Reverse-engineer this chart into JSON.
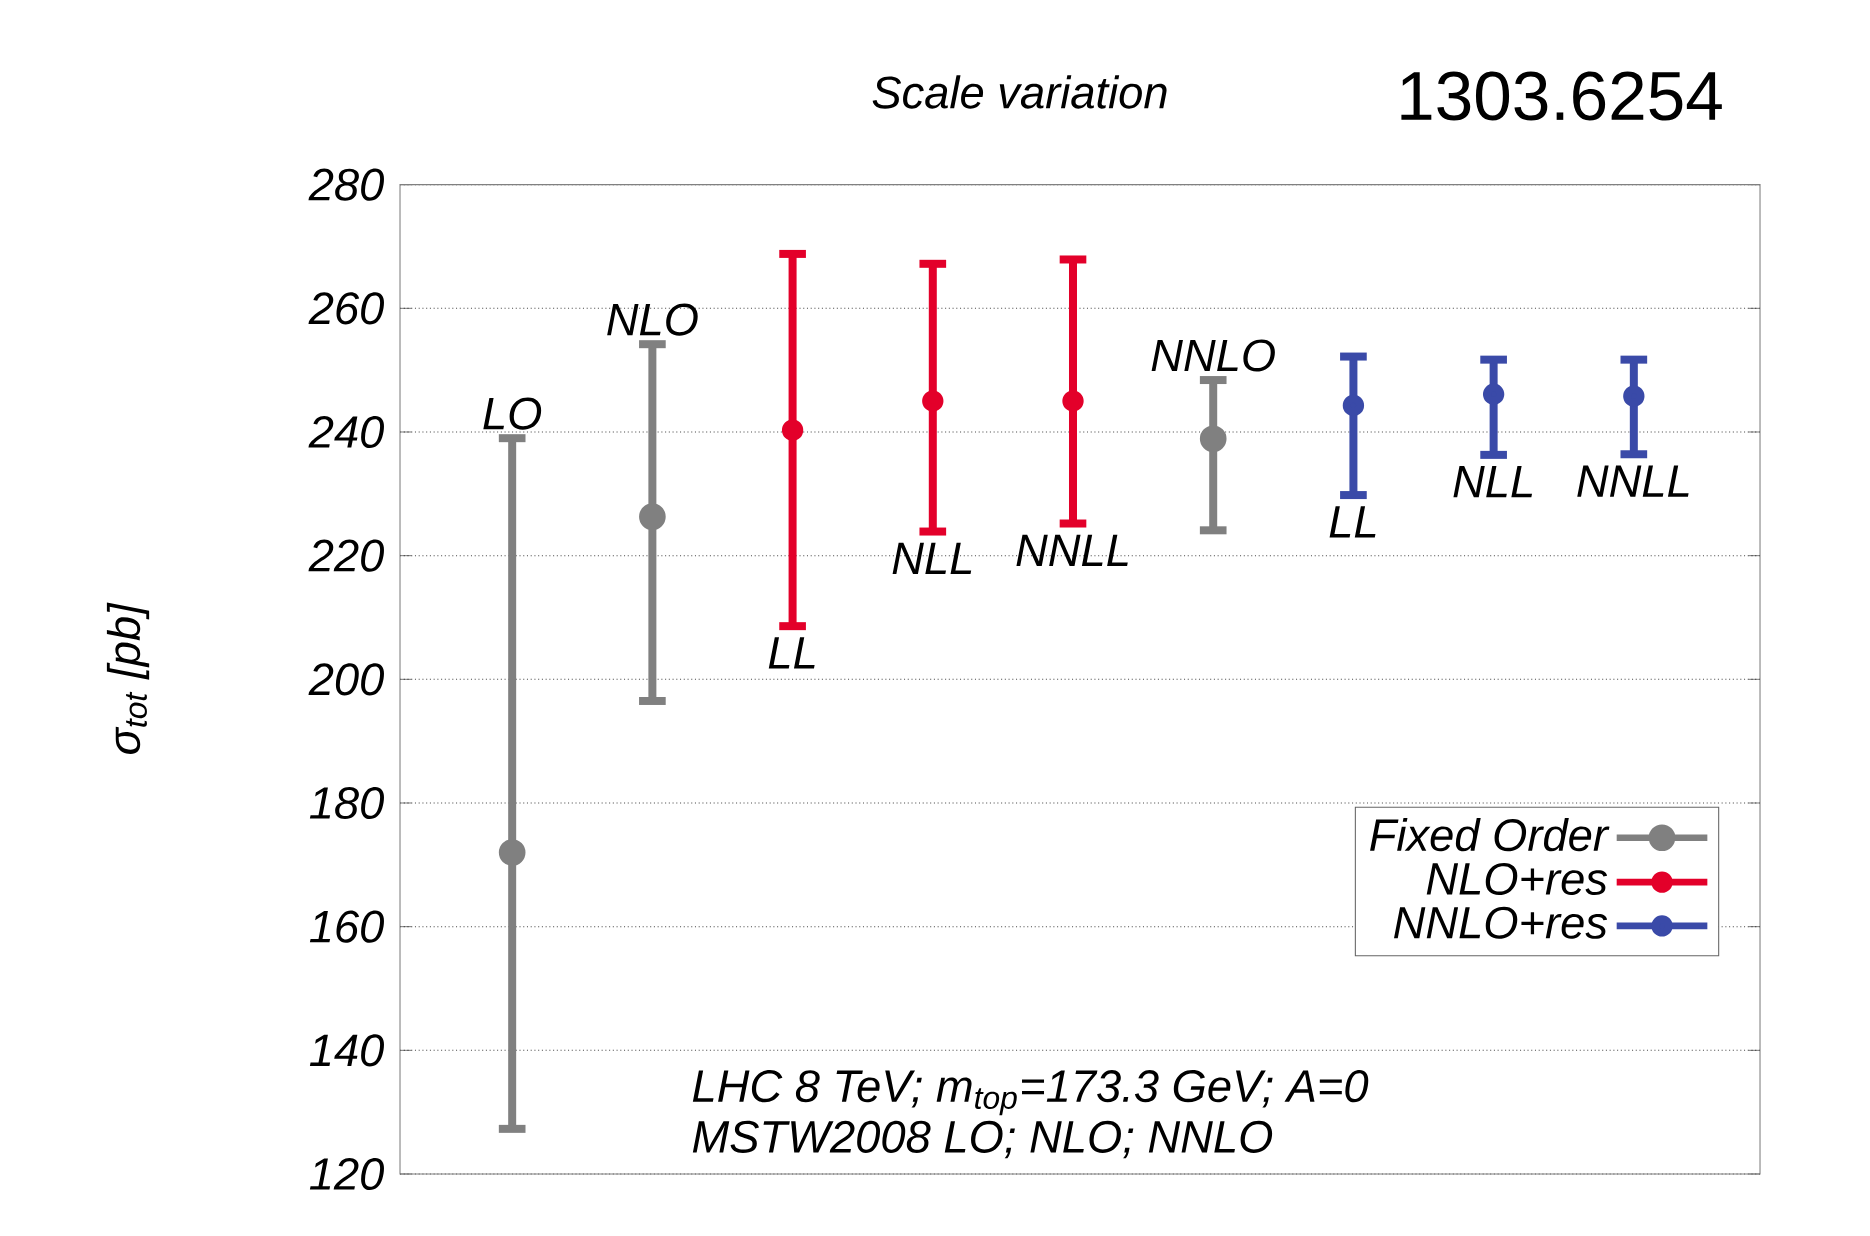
{
  "chart_data": {
    "type": "scatter",
    "title": "Scale variation",
    "ylabel": "σ$_{tot}$ [pb]",
    "categories": [
      "LO",
      "NLO",
      "LL",
      "NLL",
      "NNLL",
      "NNLO",
      "LL",
      "NLL",
      "NNLL"
    ],
    "series": [
      {
        "name": "Fixed Order",
        "color": "#808080",
        "values": [
          172,
          226.3,
          null,
          null,
          null,
          238.9,
          null,
          null,
          null
        ],
        "errors": [
          [
            127.3,
            239
          ],
          [
            196.5,
            254.2
          ],
          null,
          null,
          null,
          [
            224.1,
            248.4
          ],
          null,
          null,
          null
        ]
      },
      {
        "name": "NLO+res",
        "color": "#e3002a",
        "values": [
          null,
          null,
          240.3,
          245,
          245,
          null,
          null,
          null,
          null
        ],
        "errors": [
          null,
          null,
          [
            208.6,
            268.8
          ],
          [
            223.9,
            267.2
          ],
          [
            225.2,
            267.9
          ],
          null,
          null,
          null,
          null
        ]
      },
      {
        "name": "NNLO+res",
        "color": "#3a4aa8",
        "values": [
          null,
          null,
          null,
          null,
          null,
          null,
          244.3,
          246.1,
          245.8
        ],
        "errors": [
          null,
          null,
          null,
          null,
          null,
          null,
          [
            229.8,
            252.2
          ],
          [
            236.3,
            251.7
          ],
          [
            236.4,
            251.7
          ]
        ]
      }
    ],
    "ylim": [
      120,
      280
    ],
    "yticks": [
      120,
      140,
      160,
      180,
      200,
      220,
      240,
      260,
      280
    ],
    "grid": "y",
    "legend": "bottom right",
    "marker": "circle",
    "annotations": [
      "1303.6254",
      "LHC 8 TeV; m$_{top}$=173.3 GeV; A=0",
      "MSTW2008 LO; NLO; NNLO"
    ]
  }
}
